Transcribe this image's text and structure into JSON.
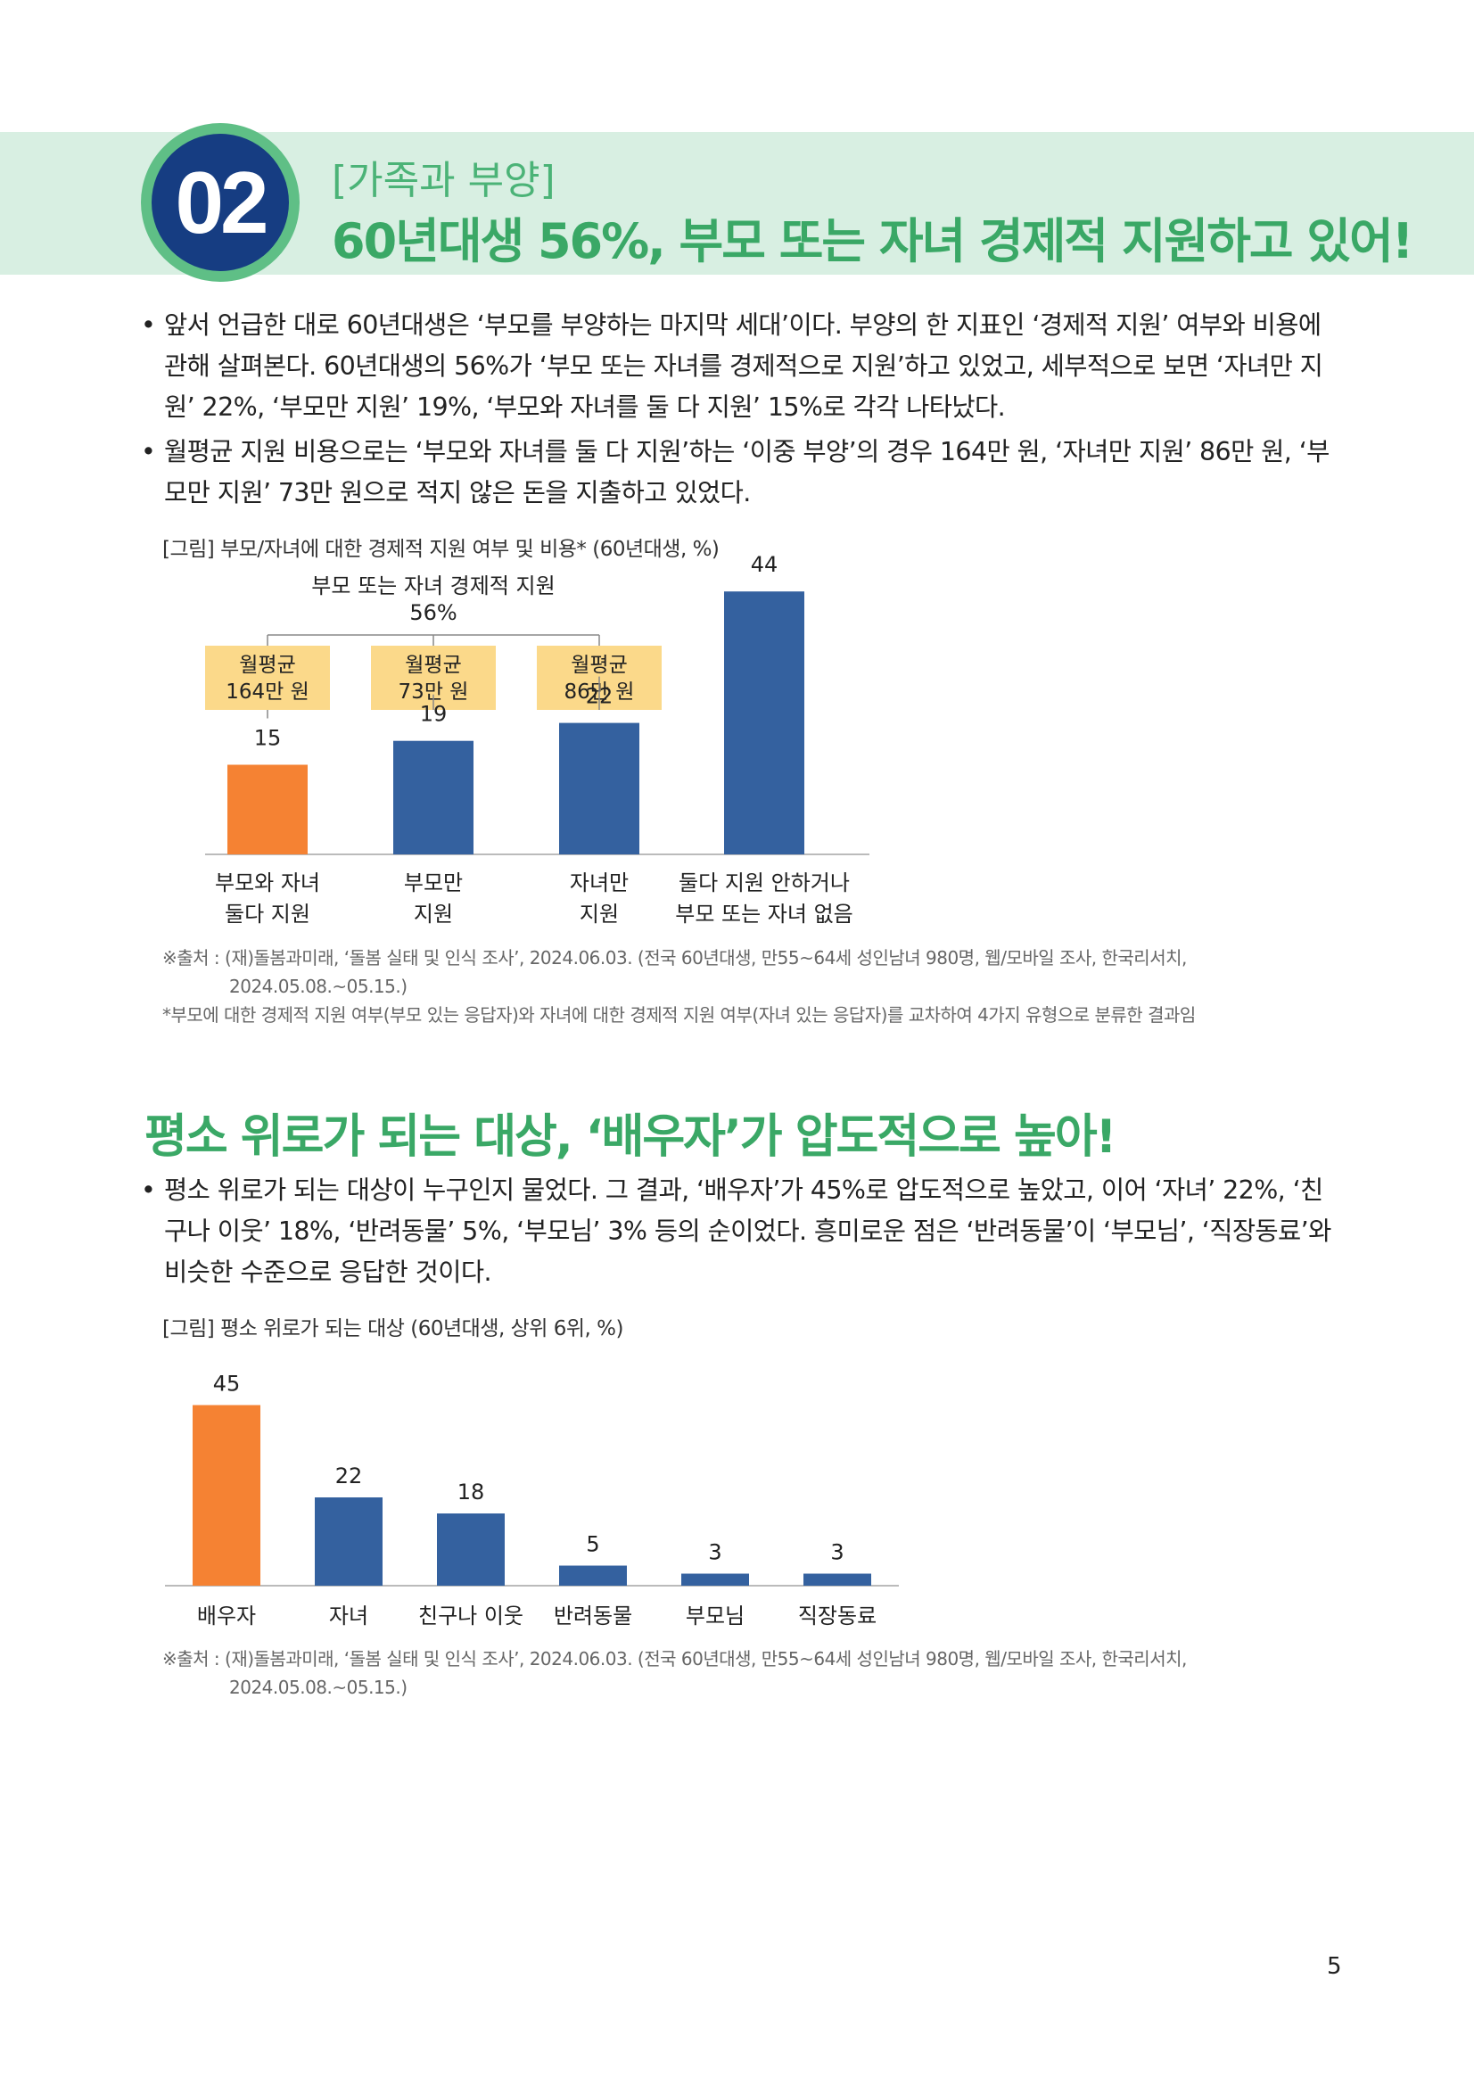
{
  "header": {
    "number": "02",
    "kicker": "[가족과 부양]",
    "title": "60년대생 56%, 부모 또는 자녀 경제적 지원하고 있어!"
  },
  "section1": {
    "bullets": [
      "앞서 언급한 대로 60년대생은 ‘부모를 부양하는 마지막 세대’이다. 부양의 한 지표인 ‘경제적 지원’ 여부와 비용에 관해 살펴본다. 60년대생의 56%가 ‘부모 또는 자녀를 경제적으로 지원’하고 있었고, 세부적으로 보면 ‘자녀만 지원’ 22%, ‘부모만 지원’ 19%, ‘부모와 자녀를 둘 다 지원’ 15%로 각각 나타났다.",
      "월평균 지원 비용으로는 ‘부모와 자녀를 둘 다 지원’하는 ‘이중 부양’의 경우 164만 원, ‘자녀만 지원’ 86만 원, ‘부모만 지원’ 73만 원으로 적지 않은 돈을 지출하고 있었다."
    ],
    "figure_caption": "[그림] 부모/자녀에 대한 경제적 지원 여부 및 비용* (60년대생, %)",
    "source_line1": "※출처 : (재)돌봄과미래, ‘돌봄 실태 및 인식 조사’, 2024.06.03. (전국 60년대생, 만55~64세 성인남녀 980명, 웹/모바일 조사, 한국리서치,",
    "source_line2": "2024.05.08.~05.15.)",
    "footnote": "*부모에 대한 경제적 지원 여부(부모 있는 응답자)와 자녀에 대한 경제적 지원 여부(자녀 있는 응답자)를 교차하여 4가지 유형으로 분류한 결과임"
  },
  "section2": {
    "title": "평소 위로가 되는 대상, ‘배우자’가 압도적으로 높아!",
    "bullets": [
      "평소 위로가 되는 대상이 누구인지 물었다. 그 결과, ‘배우자’가 45%로 압도적으로 높았고, 이어 ‘자녀’ 22%, ‘친구나 이웃’ 18%, ‘반려동물’ 5%, ‘부모님’ 3% 등의 순이었다. 흥미로운 점은 ‘반려동물’이 ‘부모님’, ‘직장동료’와 비슷한 수준으로 응답한 것이다."
    ],
    "figure_caption": "[그림] 평소 위로가 되는 대상 (60년대생, 상위 6위, %)",
    "source_line1": "※출처 : (재)돌봄과미래, ‘돌봄 실태 및 인식 조사’, 2024.06.03. (전국 60년대생, 만55~64세 성인남녀 980명, 웹/모바일 조사, 한국리서치,",
    "source_line2": "2024.05.08.~05.15.)"
  },
  "page_number": "5",
  "colors": {
    "orange": "#f58233",
    "blue": "#34619f",
    "green": "#3aa866",
    "callout": "#fbd98a"
  },
  "chart_data": [
    {
      "type": "bar",
      "categories": [
        [
          "부모와 자녀",
          "둘다 지원"
        ],
        [
          "부모만",
          "지원"
        ],
        [
          "자녀만",
          "지원"
        ],
        [
          "둘다 지원 안하거나",
          "부모 또는 자녀 없음"
        ]
      ],
      "values": [
        15,
        19,
        22,
        44
      ],
      "highlight_index": 0,
      "group_label": [
        "부모 또는 자녀 경제적 지원",
        "56%"
      ],
      "group_span": [
        0,
        2
      ],
      "callouts": [
        [
          "월평균",
          "164만 원"
        ],
        [
          "월평균",
          "73만 원"
        ],
        [
          "월평균",
          "86만 원"
        ]
      ],
      "ylim": [
        0,
        50
      ]
    },
    {
      "type": "bar",
      "categories": [
        "배우자",
        "자녀",
        "친구나 이웃",
        "반려동물",
        "부모님",
        "직장동료"
      ],
      "values": [
        45,
        22,
        18,
        5,
        3,
        3
      ],
      "highlight_index": 0,
      "ylim": [
        0,
        50
      ]
    }
  ]
}
